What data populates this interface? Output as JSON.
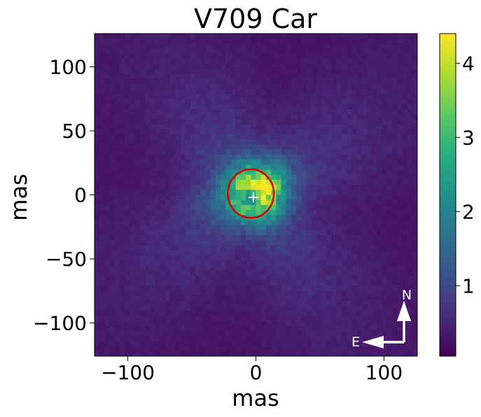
{
  "chart_data": {
    "type": "heatmap",
    "title": "V709 Car",
    "xlabel": "mas",
    "ylabel": "mas",
    "xlim": [
      -126,
      126
    ],
    "ylim": [
      -126,
      126
    ],
    "xticks": [
      -100,
      0,
      100
    ],
    "xtick_labels": [
      "−100",
      "0",
      "100"
    ],
    "yticks": [
      100,
      50,
      0,
      -50,
      -100
    ],
    "ytick_labels": [
      "100",
      "50",
      "0",
      "−50",
      "−100"
    ],
    "colormap": "viridis",
    "colorbar": {
      "range": [
        0.05,
        4.4
      ],
      "ticks": [
        1,
        2,
        3,
        4
      ],
      "tick_labels": [
        "1",
        "2",
        "3",
        "4"
      ]
    },
    "ellipse": {
      "center": [
        -4,
        1
      ],
      "rx": 18,
      "ry": 19,
      "color": "#e00000"
    },
    "marker": {
      "x": -2,
      "y": -2,
      "symbol": "+",
      "color": "#ffffff"
    },
    "compass": {
      "north_label": "N",
      "east_label": "E",
      "color": "#ffffff"
    },
    "grid": false
  }
}
